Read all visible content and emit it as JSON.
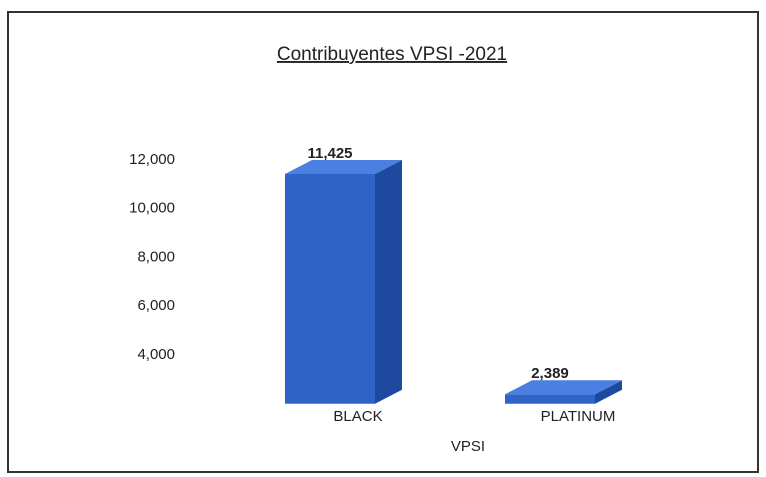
{
  "chart_data": {
    "type": "bar3d",
    "title": "Contribuyentes VPSI  -2021",
    "x_label": "VPSI",
    "categories": [
      "BLACK",
      "PLATINUM"
    ],
    "values": [
      11425,
      2389
    ],
    "value_labels": [
      "11,425",
      "2,389"
    ],
    "color": "#2f63c8",
    "ylim": [
      2000,
      12500
    ],
    "yticks": [
      {
        "value": 4000,
        "label": "4,000"
      },
      {
        "value": 6000,
        "label": "6,000"
      },
      {
        "value": 8000,
        "label": "8,000"
      },
      {
        "value": 10000,
        "label": "10,000"
      },
      {
        "value": 12000,
        "label": "12,000"
      }
    ],
    "grid": false
  }
}
